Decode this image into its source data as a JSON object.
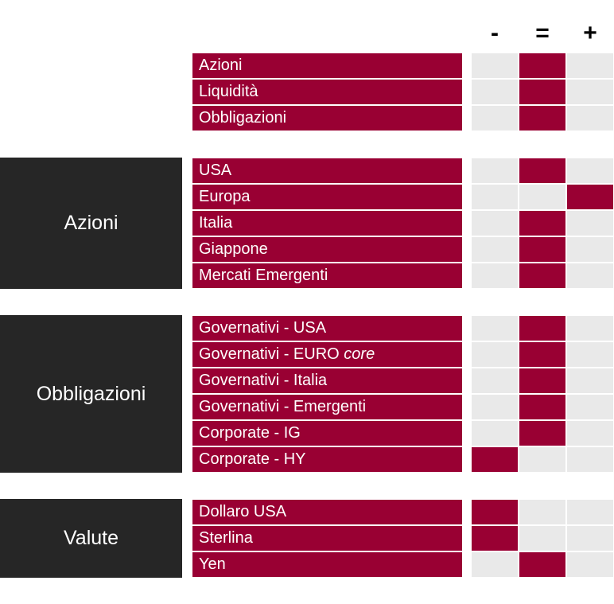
{
  "columns": [
    "-",
    "=",
    "+"
  ],
  "sections": [
    {
      "group": "",
      "rows": [
        {
          "label": "Azioni",
          "view": "="
        },
        {
          "label": "Liquidità",
          "view": "="
        },
        {
          "label": "Obbligazioni",
          "view": "="
        }
      ]
    },
    {
      "group": "Azioni",
      "rows": [
        {
          "label": "USA",
          "view": "="
        },
        {
          "label": "Europa",
          "view": "+"
        },
        {
          "label": "Italia",
          "view": "="
        },
        {
          "label": "Giappone",
          "view": "="
        },
        {
          "label": "Mercati Emergenti",
          "view": "="
        }
      ]
    },
    {
      "group": "Obbligazioni",
      "rows": [
        {
          "label": "Governativi - USA",
          "view": "="
        },
        {
          "label": "Governativi - EURO",
          "label_italic": "core",
          "view": "="
        },
        {
          "label": "Governativi - Italia",
          "view": "="
        },
        {
          "label": "Governativi - Emergenti",
          "view": "="
        },
        {
          "label": "Corporate - IG",
          "view": "="
        },
        {
          "label": "Corporate - HY",
          "view": "-"
        }
      ]
    },
    {
      "group": "Valute",
      "rows": [
        {
          "label": "Dollaro USA",
          "view": "-"
        },
        {
          "label": "Sterlina",
          "view": "-"
        },
        {
          "label": "Yen",
          "view": "="
        }
      ]
    }
  ],
  "colors": {
    "accent": "#990033",
    "group_background": "#262626",
    "empty_cell": "#e9e9e9"
  }
}
